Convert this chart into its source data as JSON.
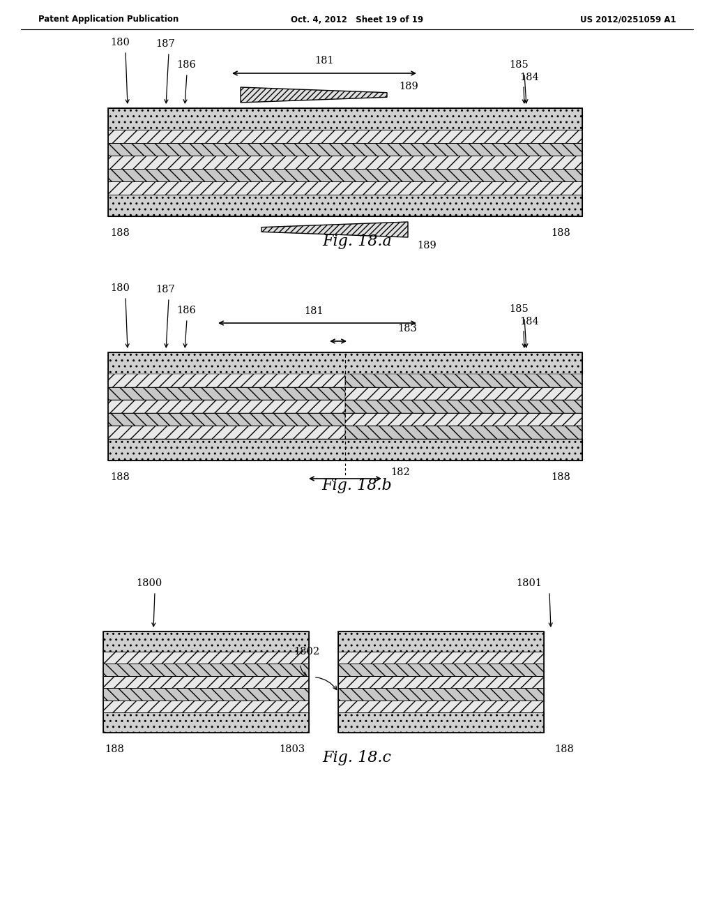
{
  "bg_color": "#ffffff",
  "header_left": "Patent Application Publication",
  "header_center": "Oct. 4, 2012   Sheet 19 of 19",
  "header_right": "US 2012/0251059 A1",
  "fig_labels": [
    "Fig. 18.a",
    "Fig. 18.b",
    "Fig. 18.c"
  ],
  "fig_label_fontsize": 18
}
